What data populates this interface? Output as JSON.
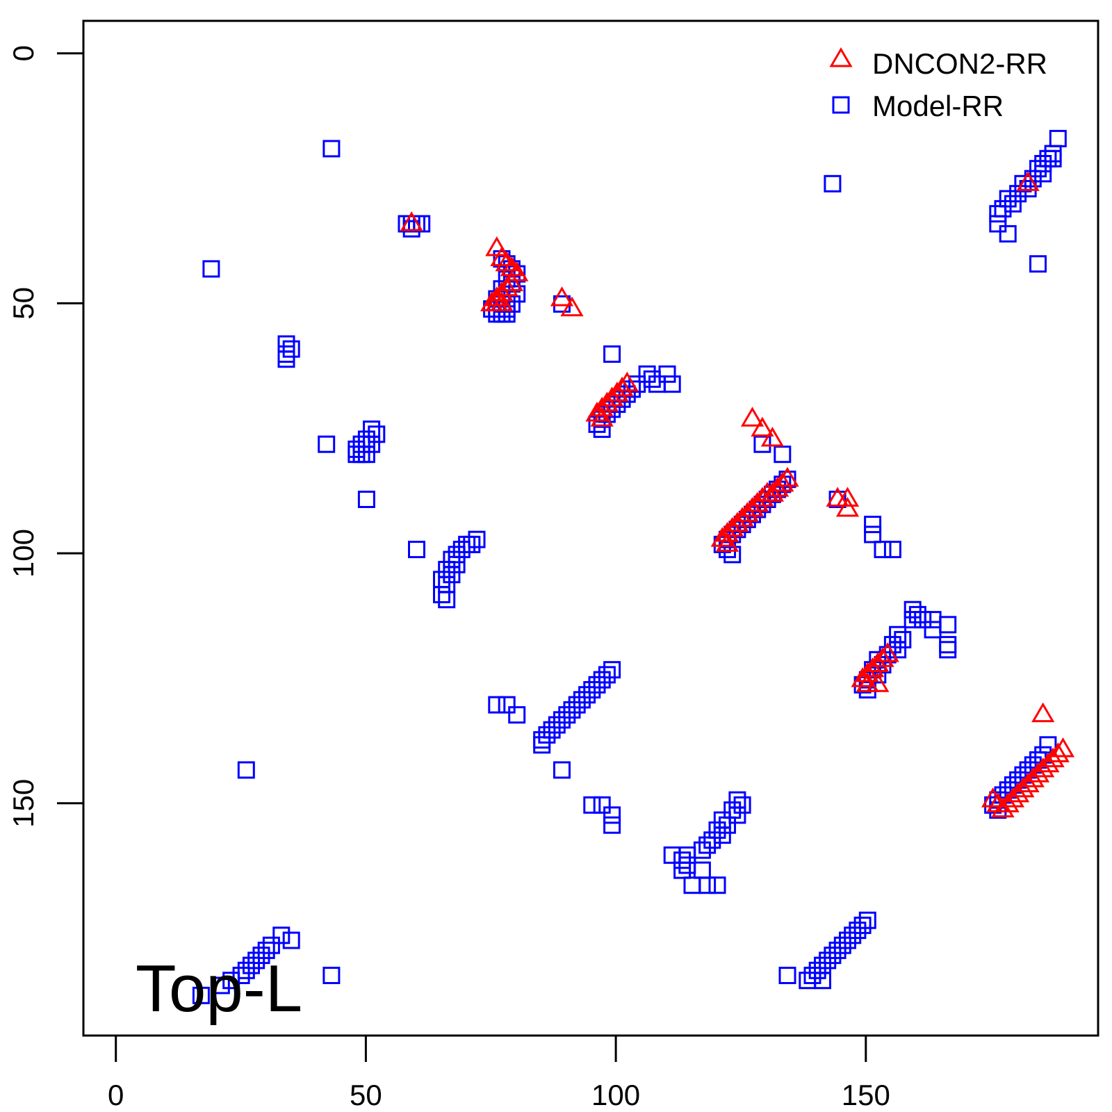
{
  "chart_data": {
    "type": "scatter",
    "title": "",
    "xlabel": "",
    "ylabel": "",
    "annotation": "Top-L",
    "xlim": [
      -6.5,
      196
    ],
    "ylim": [
      -6.5,
      196
    ],
    "y_reversed": true,
    "grid": false,
    "legend_position": "top-right",
    "x_ticks": [
      "0",
      "50",
      "100",
      "150"
    ],
    "y_ticks": [
      "0",
      "50",
      "100",
      "150"
    ],
    "legend": [
      {
        "name": "DNCON2-RR",
        "marker": "triangle",
        "color": "#ff0000"
      },
      {
        "name": "Model-RR",
        "marker": "square",
        "color": "#0000ff"
      }
    ],
    "series": [
      {
        "name": "Model-RR",
        "marker": "square",
        "color": "#0000ff",
        "points": [
          [
            43,
            19
          ],
          [
            19,
            43
          ],
          [
            143,
            26
          ],
          [
            188,
            17
          ],
          [
            187,
            20
          ],
          [
            186,
            21
          ],
          [
            187,
            21
          ],
          [
            185,
            22
          ],
          [
            184,
            23
          ],
          [
            185,
            24
          ],
          [
            183,
            25
          ],
          [
            181,
            26
          ],
          [
            182,
            27
          ],
          [
            180,
            28
          ],
          [
            178,
            29
          ],
          [
            179,
            30
          ],
          [
            177,
            31
          ],
          [
            176,
            32
          ],
          [
            176,
            34
          ],
          [
            178,
            36
          ],
          [
            184,
            42
          ],
          [
            58,
            34
          ],
          [
            59,
            34
          ],
          [
            60,
            34
          ],
          [
            61,
            34
          ],
          [
            59,
            35
          ],
          [
            77,
            41
          ],
          [
            78,
            42
          ],
          [
            79,
            43
          ],
          [
            80,
            44
          ],
          [
            78,
            45
          ],
          [
            79,
            46
          ],
          [
            77,
            47
          ],
          [
            80,
            48
          ],
          [
            76,
            49
          ],
          [
            77,
            50
          ],
          [
            78,
            50
          ],
          [
            79,
            50
          ],
          [
            75,
            51
          ],
          [
            76,
            51
          ],
          [
            77,
            51
          ],
          [
            78,
            51
          ],
          [
            76,
            52
          ],
          [
            77,
            52
          ],
          [
            78,
            52
          ],
          [
            89,
            50
          ],
          [
            34,
            58
          ],
          [
            35,
            59
          ],
          [
            34,
            60
          ],
          [
            34,
            61
          ],
          [
            99,
            60
          ],
          [
            106,
            64
          ],
          [
            107,
            65
          ],
          [
            110,
            64
          ],
          [
            111,
            66
          ],
          [
            108,
            66
          ],
          [
            104,
            66
          ],
          [
            103,
            67
          ],
          [
            102,
            68
          ],
          [
            101,
            69
          ],
          [
            100,
            70
          ],
          [
            99,
            71
          ],
          [
            98,
            72
          ],
          [
            97,
            73
          ],
          [
            96,
            74
          ],
          [
            97,
            75
          ],
          [
            51,
            75
          ],
          [
            52,
            76
          ],
          [
            50,
            77
          ],
          [
            51,
            78
          ],
          [
            49,
            78
          ],
          [
            48,
            79
          ],
          [
            49,
            80
          ],
          [
            50,
            80
          ],
          [
            48,
            80
          ],
          [
            42,
            78
          ],
          [
            50,
            89
          ],
          [
            129,
            78
          ],
          [
            133,
            80
          ],
          [
            134,
            85
          ],
          [
            133,
            86
          ],
          [
            132,
            87
          ],
          [
            131,
            88
          ],
          [
            130,
            89
          ],
          [
            129,
            90
          ],
          [
            128,
            91
          ],
          [
            127,
            92
          ],
          [
            126,
            93
          ],
          [
            125,
            94
          ],
          [
            124,
            95
          ],
          [
            123,
            96
          ],
          [
            122,
            97
          ],
          [
            121,
            98
          ],
          [
            122,
            99
          ],
          [
            123,
            100
          ],
          [
            144,
            89
          ],
          [
            151,
            94
          ],
          [
            151,
            96
          ],
          [
            153,
            99
          ],
          [
            155,
            99
          ],
          [
            72,
            97
          ],
          [
            71,
            98
          ],
          [
            70,
            98
          ],
          [
            69,
            99
          ],
          [
            68,
            100
          ],
          [
            67,
            101
          ],
          [
            68,
            102
          ],
          [
            66,
            103
          ],
          [
            67,
            104
          ],
          [
            65,
            105
          ],
          [
            66,
            106
          ],
          [
            65,
            108
          ],
          [
            66,
            109
          ],
          [
            60,
            99
          ],
          [
            159,
            111
          ],
          [
            160,
            112
          ],
          [
            159,
            113
          ],
          [
            161,
            113
          ],
          [
            163,
            113
          ],
          [
            166,
            114
          ],
          [
            163,
            115
          ],
          [
            156,
            116
          ],
          [
            157,
            117
          ],
          [
            155,
            118
          ],
          [
            156,
            119
          ],
          [
            154,
            120
          ],
          [
            152,
            121
          ],
          [
            153,
            122
          ],
          [
            151,
            123
          ],
          [
            152,
            124
          ],
          [
            150,
            125
          ],
          [
            149,
            126
          ],
          [
            150,
            127
          ],
          [
            166,
            118
          ],
          [
            166,
            119
          ],
          [
            99,
            123
          ],
          [
            98,
            124
          ],
          [
            97,
            125
          ],
          [
            96,
            126
          ],
          [
            95,
            127
          ],
          [
            94,
            128
          ],
          [
            93,
            129
          ],
          [
            92,
            130
          ],
          [
            91,
            131
          ],
          [
            90,
            132
          ],
          [
            89,
            133
          ],
          [
            88,
            134
          ],
          [
            87,
            135
          ],
          [
            86,
            136
          ],
          [
            85,
            137
          ],
          [
            85,
            138
          ],
          [
            76,
            130
          ],
          [
            78,
            130
          ],
          [
            80,
            132
          ],
          [
            89,
            143
          ],
          [
            186,
            138
          ],
          [
            185,
            140
          ],
          [
            184,
            141
          ],
          [
            183,
            142
          ],
          [
            182,
            143
          ],
          [
            181,
            144
          ],
          [
            180,
            145
          ],
          [
            179,
            146
          ],
          [
            178,
            147
          ],
          [
            177,
            148
          ],
          [
            176,
            149
          ],
          [
            175,
            150
          ],
          [
            176,
            151
          ],
          [
            26,
            143
          ],
          [
            95,
            150
          ],
          [
            97,
            150
          ],
          [
            99,
            152
          ],
          [
            99,
            154
          ],
          [
            124,
            149
          ],
          [
            125,
            150
          ],
          [
            123,
            151
          ],
          [
            124,
            152
          ],
          [
            121,
            153
          ],
          [
            122,
            154
          ],
          [
            120,
            155
          ],
          [
            121,
            156
          ],
          [
            119,
            157
          ],
          [
            118,
            158
          ],
          [
            117,
            159
          ],
          [
            111,
            160
          ],
          [
            114,
            160
          ],
          [
            113,
            161
          ],
          [
            114,
            162
          ],
          [
            113,
            163
          ],
          [
            117,
            163
          ],
          [
            115,
            166
          ],
          [
            118,
            166
          ],
          [
            120,
            166
          ],
          [
            150,
            173
          ],
          [
            149,
            174
          ],
          [
            148,
            175
          ],
          [
            147,
            176
          ],
          [
            146,
            177
          ],
          [
            145,
            178
          ],
          [
            144,
            179
          ],
          [
            143,
            180
          ],
          [
            142,
            181
          ],
          [
            141,
            182
          ],
          [
            140,
            183
          ],
          [
            139,
            184
          ],
          [
            138,
            185
          ],
          [
            141,
            185
          ],
          [
            134,
            184
          ],
          [
            33,
            176
          ],
          [
            35,
            177
          ],
          [
            31,
            178
          ],
          [
            30,
            179
          ],
          [
            29,
            180
          ],
          [
            28,
            181
          ],
          [
            27,
            182
          ],
          [
            26,
            183
          ],
          [
            25,
            184
          ],
          [
            23,
            185
          ],
          [
            21,
            186
          ],
          [
            17,
            188
          ],
          [
            43,
            184
          ]
        ]
      },
      {
        "name": "DNCON2-RR",
        "marker": "triangle",
        "color": "#ff0000",
        "points": [
          [
            59,
            34
          ],
          [
            182,
            26
          ],
          [
            76,
            39
          ],
          [
            77,
            41
          ],
          [
            78,
            42
          ],
          [
            79,
            43
          ],
          [
            80,
            44
          ],
          [
            79,
            46
          ],
          [
            78,
            47
          ],
          [
            77,
            48
          ],
          [
            76,
            49
          ],
          [
            75,
            50
          ],
          [
            76,
            50
          ],
          [
            77,
            50
          ],
          [
            89,
            49
          ],
          [
            91,
            51
          ],
          [
            102,
            66
          ],
          [
            101,
            67
          ],
          [
            100,
            68
          ],
          [
            99,
            69
          ],
          [
            98,
            70
          ],
          [
            97,
            71
          ],
          [
            96,
            72
          ],
          [
            97,
            73
          ],
          [
            127,
            73
          ],
          [
            129,
            75
          ],
          [
            131,
            77
          ],
          [
            134,
            85
          ],
          [
            133,
            86
          ],
          [
            132,
            87
          ],
          [
            131,
            88
          ],
          [
            130,
            88
          ],
          [
            129,
            89
          ],
          [
            128,
            90
          ],
          [
            127,
            91
          ],
          [
            126,
            92
          ],
          [
            125,
            93
          ],
          [
            124,
            94
          ],
          [
            123,
            95
          ],
          [
            122,
            96
          ],
          [
            121,
            97
          ],
          [
            122,
            98
          ],
          [
            144,
            89
          ],
          [
            146,
            89
          ],
          [
            146,
            91
          ],
          [
            154,
            120
          ],
          [
            153,
            121
          ],
          [
            152,
            122
          ],
          [
            151,
            123
          ],
          [
            150,
            124
          ],
          [
            149,
            125
          ],
          [
            152,
            126
          ],
          [
            150,
            126
          ],
          [
            185,
            132
          ],
          [
            189,
            139
          ],
          [
            188,
            140
          ],
          [
            187,
            141
          ],
          [
            186,
            142
          ],
          [
            185,
            143
          ],
          [
            184,
            144
          ],
          [
            183,
            145
          ],
          [
            182,
            146
          ],
          [
            181,
            147
          ],
          [
            180,
            148
          ],
          [
            179,
            149
          ],
          [
            178,
            150
          ],
          [
            177,
            151
          ],
          [
            176,
            150
          ],
          [
            175,
            149
          ]
        ]
      }
    ]
  }
}
